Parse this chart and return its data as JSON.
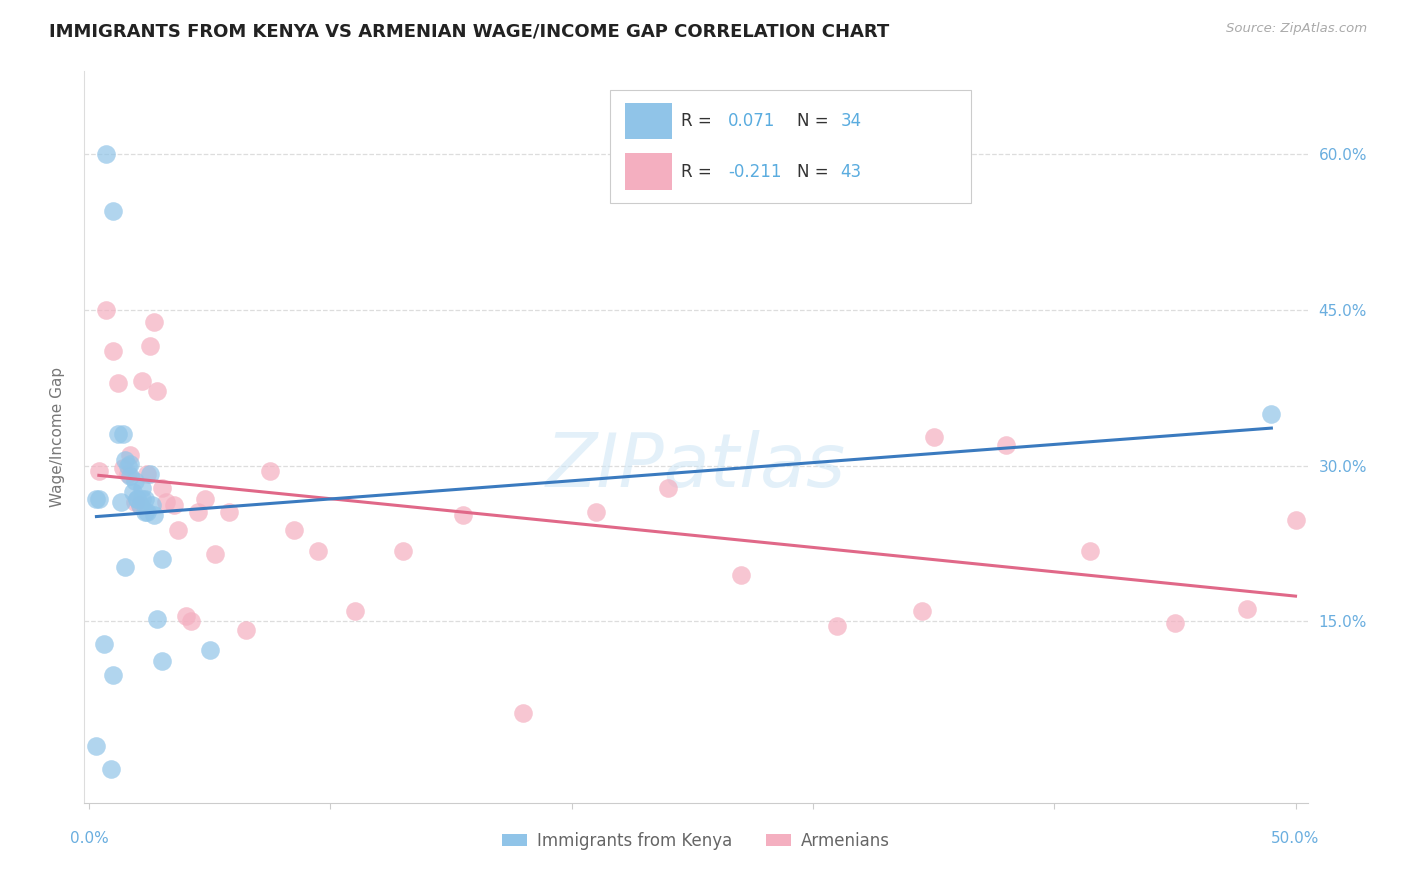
{
  "title": "IMMIGRANTS FROM KENYA VS ARMENIAN WAGE/INCOME GAP CORRELATION CHART",
  "source": "Source: ZipAtlas.com",
  "ylabel": "Wage/Income Gap",
  "ytick_vals": [
    0.15,
    0.3,
    0.45,
    0.6
  ],
  "ytick_labels": [
    "15.0%",
    "30.0%",
    "45.0%",
    "60.0%"
  ],
  "xmin": -0.002,
  "xmax": 0.505,
  "ymin": -0.025,
  "ymax": 0.68,
  "legend1_r": "0.071",
  "legend1_n": "34",
  "legend2_r": "-0.211",
  "legend2_n": "43",
  "legend_label1": "Immigrants from Kenya",
  "legend_label2": "Armenians",
  "color_kenya": "#90c4e8",
  "color_armenian": "#f4afc0",
  "color_kenya_line": "#3a7abf",
  "color_armenian_line": "#e06888",
  "watermark": "ZIPatlas",
  "kenya_x": [
    0.003,
    0.007,
    0.01,
    0.012,
    0.014,
    0.015,
    0.016,
    0.017,
    0.018,
    0.019,
    0.02,
    0.021,
    0.022,
    0.023,
    0.024,
    0.025,
    0.026,
    0.027,
    0.028,
    0.03,
    0.004,
    0.009,
    0.013,
    0.017,
    0.02,
    0.023,
    0.003,
    0.006,
    0.01,
    0.015,
    0.022,
    0.03,
    0.05,
    0.49
  ],
  "kenya_y": [
    0.03,
    0.6,
    0.545,
    0.33,
    0.33,
    0.305,
    0.3,
    0.29,
    0.275,
    0.285,
    0.268,
    0.262,
    0.278,
    0.268,
    0.255,
    0.292,
    0.262,
    0.252,
    0.152,
    0.112,
    0.268,
    0.008,
    0.265,
    0.302,
    0.268,
    0.255,
    0.268,
    0.128,
    0.098,
    0.202,
    0.268,
    0.21,
    0.122,
    0.35
  ],
  "armenian_x": [
    0.004,
    0.007,
    0.01,
    0.012,
    0.014,
    0.016,
    0.017,
    0.019,
    0.021,
    0.022,
    0.024,
    0.025,
    0.027,
    0.028,
    0.03,
    0.032,
    0.035,
    0.037,
    0.04,
    0.042,
    0.045,
    0.048,
    0.052,
    0.058,
    0.065,
    0.075,
    0.085,
    0.095,
    0.11,
    0.13,
    0.155,
    0.18,
    0.21,
    0.24,
    0.27,
    0.31,
    0.345,
    0.38,
    0.415,
    0.45,
    0.48,
    0.5,
    0.35
  ],
  "armenian_y": [
    0.295,
    0.45,
    0.41,
    0.38,
    0.298,
    0.292,
    0.31,
    0.265,
    0.262,
    0.382,
    0.292,
    0.415,
    0.438,
    0.372,
    0.278,
    0.265,
    0.262,
    0.238,
    0.155,
    0.15,
    0.255,
    0.268,
    0.215,
    0.255,
    0.142,
    0.295,
    0.238,
    0.218,
    0.16,
    0.218,
    0.252,
    0.062,
    0.255,
    0.278,
    0.195,
    0.145,
    0.16,
    0.32,
    0.218,
    0.148,
    0.162,
    0.248,
    0.328
  ]
}
